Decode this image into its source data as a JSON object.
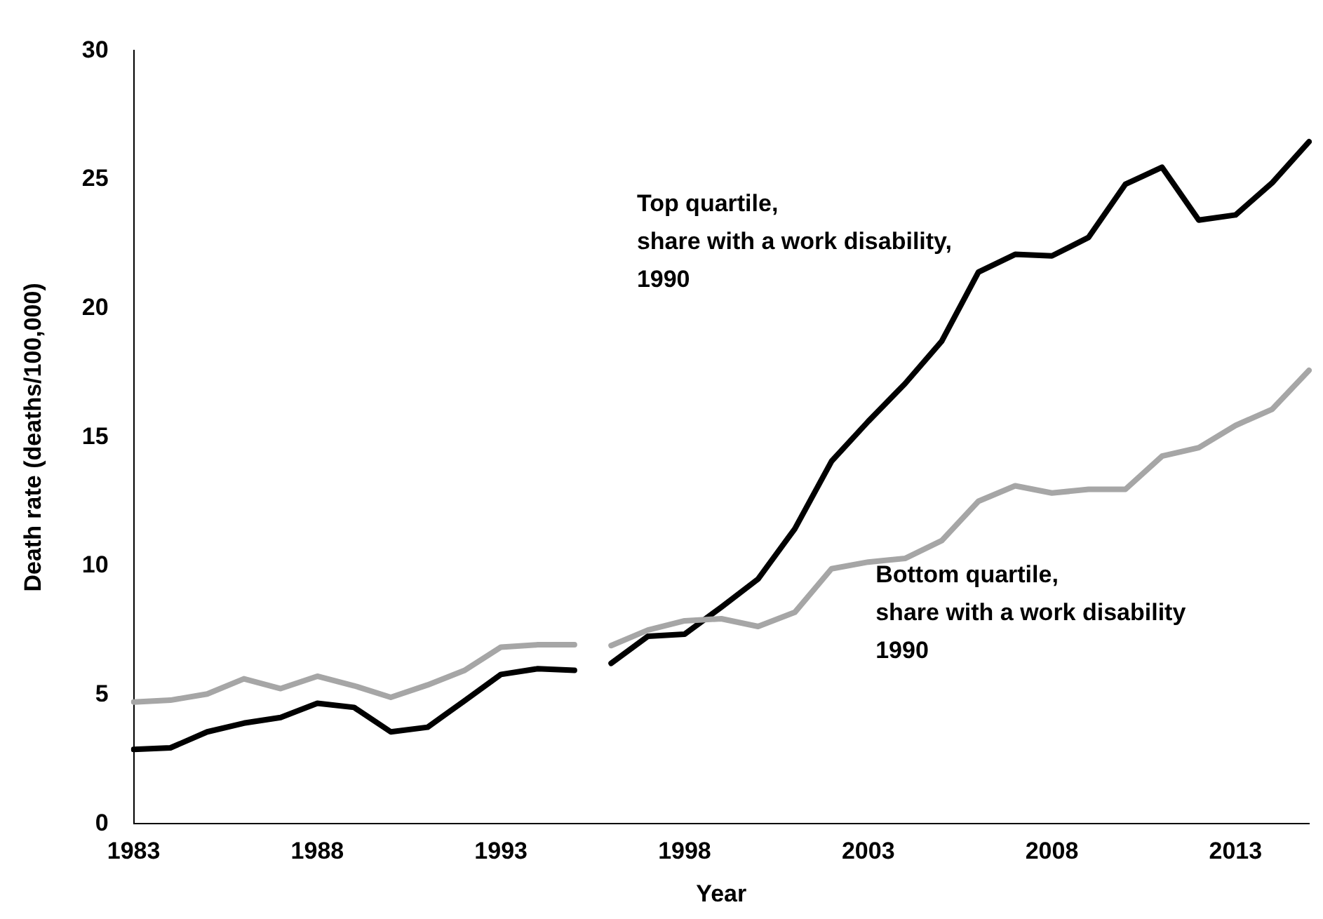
{
  "chart_data": {
    "type": "line",
    "xlabel": "Year",
    "ylabel": "Death rate (deaths/100,000)",
    "categories": [
      "1983",
      null,
      null,
      null,
      null,
      "1988",
      null,
      null,
      null,
      null,
      "1993",
      null,
      null,
      null,
      null,
      "1998",
      null,
      null,
      null,
      null,
      "2003",
      null,
      null,
      null,
      null,
      "2008",
      null,
      null,
      null,
      null,
      "2013",
      null,
      null
    ],
    "series": [
      {
        "color": "#a6a6a6",
        "values": [
          4.73,
          4.8,
          5.04,
          5.63,
          5.25,
          5.73,
          5.36,
          4.91,
          5.39,
          5.95,
          6.86,
          6.95,
          6.95,
          null,
          null,
          null,
          null,
          null,
          null,
          null,
          null,
          null,
          null,
          null,
          null,
          null,
          null,
          null,
          null,
          null,
          null,
          null,
          null
        ]
      },
      {
        "color": "#a6a6a6",
        "values": [
          null,
          null,
          null,
          null,
          null,
          null,
          null,
          null,
          null,
          null,
          null,
          null,
          null,
          6.92,
          7.52,
          7.88,
          7.96,
          7.66,
          8.21,
          9.9,
          10.16,
          10.3,
          10.99,
          12.52,
          13.12,
          12.84,
          12.98,
          12.98,
          14.27,
          14.6,
          15.46,
          16.09,
          17.6
        ]
      },
      {
        "color": "#000000",
        "values": [
          2.89,
          2.95,
          3.57,
          3.91,
          4.13,
          4.68,
          4.52,
          3.57,
          3.75,
          4.77,
          5.8,
          6.02,
          5.96,
          null,
          null,
          null,
          null,
          null,
          null,
          null,
          null,
          null,
          null,
          null,
          null,
          null,
          null,
          null,
          null,
          null,
          null,
          null,
          null
        ]
      },
      {
        "color": "#000000",
        "values": [
          null,
          null,
          null,
          null,
          null,
          null,
          null,
          null,
          null,
          null,
          null,
          null,
          null,
          6.23,
          7.28,
          7.36,
          8.41,
          9.5,
          11.45,
          14.07,
          15.62,
          17.08,
          18.73,
          21.41,
          22.1,
          22.04,
          22.76,
          24.82,
          25.48,
          23.43,
          23.63,
          24.88,
          26.47
        ]
      }
    ],
    "ylim": [
      0,
      30
    ],
    "yticks": [
      0,
      5,
      10,
      15,
      20,
      25,
      30
    ],
    "grid": false,
    "legend": false,
    "marker": "none",
    "line_style": "solid",
    "annotations": [
      "Top quartile,\nshare with a work disability,\n1990",
      "Bottom quartile,\nshare with a work disability\n1990"
    ]
  }
}
